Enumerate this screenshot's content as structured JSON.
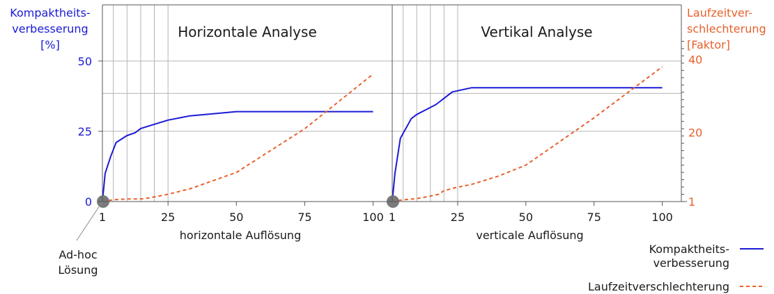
{
  "chart_data": {
    "type": "line",
    "left_axis": {
      "label_lines": [
        "Kompaktheits-",
        "verbesserung",
        "[%]"
      ],
      "ticks": [
        0,
        25,
        50
      ],
      "range": [
        0,
        70
      ],
      "color": "#1a1ad6"
    },
    "right_axis": {
      "label_lines": [
        "Laufzeitver-",
        "schlechterung",
        "[Faktor]"
      ],
      "ticks": [
        1,
        20,
        40
      ],
      "range": [
        1,
        55
      ],
      "color": "#e8602c"
    },
    "panels": [
      {
        "title": "Horizontale Analyse",
        "xlabel": "horizontale Auflösung",
        "xticks": [
          1,
          25,
          50,
          75,
          100
        ],
        "xrange": [
          1,
          107
        ],
        "gridlines_x": [
          1,
          5,
          10,
          15,
          20,
          25
        ],
        "series": [
          {
            "name": "Kompaktheitsverbesserung",
            "style": "solid",
            "axis": "left",
            "points": [
              [
                1,
                0
              ],
              [
                2,
                10
              ],
              [
                4,
                16
              ],
              [
                6,
                21
              ],
              [
                10,
                23.5
              ],
              [
                13,
                24.5
              ],
              [
                15,
                26
              ],
              [
                20,
                27.5
              ],
              [
                25,
                29
              ],
              [
                33,
                30.5
              ],
              [
                50,
                32
              ],
              [
                100,
                32
              ]
            ]
          },
          {
            "name": "Laufzeitverschlechterung",
            "style": "dashed",
            "axis": "right",
            "points": [
              [
                1,
                1
              ],
              [
                5,
                1.5
              ],
              [
                10,
                1.7
              ],
              [
                15,
                1.7
              ],
              [
                18,
                2
              ],
              [
                25,
                3
              ],
              [
                33,
                4.5
              ],
              [
                50,
                9
              ],
              [
                75,
                21
              ],
              [
                100,
                36
              ]
            ]
          }
        ]
      },
      {
        "title": "Vertikal Analyse",
        "xlabel": "verticale Auflösung",
        "xticks": [
          1,
          25,
          50,
          75,
          100
        ],
        "xrange": [
          1,
          107
        ],
        "gridlines_x": [
          1,
          5,
          10,
          15,
          20,
          25
        ],
        "series": [
          {
            "name": "Kompaktheitsverbesserung",
            "style": "solid",
            "axis": "left",
            "points": [
              [
                1,
                0
              ],
              [
                2,
                10
              ],
              [
                4,
                22.5
              ],
              [
                8,
                29.5
              ],
              [
                10,
                31
              ],
              [
                13,
                32.5
              ],
              [
                17,
                34.5
              ],
              [
                19,
                36
              ],
              [
                23,
                39
              ],
              [
                30,
                40.5
              ],
              [
                100,
                40.5
              ]
            ]
          },
          {
            "name": "Laufzeitverschlechterung",
            "style": "dashed",
            "axis": "right",
            "points": [
              [
                1,
                1
              ],
              [
                5,
                1.5
              ],
              [
                10,
                1.8
              ],
              [
                15,
                2.5
              ],
              [
                18,
                3
              ],
              [
                20,
                4
              ],
              [
                24,
                4.8
              ],
              [
                30,
                5.7
              ],
              [
                40,
                8
              ],
              [
                50,
                11
              ],
              [
                75,
                24
              ],
              [
                100,
                38
              ]
            ]
          }
        ]
      }
    ],
    "hlines_left": [
      25,
      38.5,
      50
    ],
    "annotation": [
      "Ad-hoc",
      "Lösung"
    ],
    "legend": {
      "placement": "bottom-right",
      "items": [
        {
          "label_lines": [
            "Kompaktheits-",
            "verbesserung"
          ],
          "style": "solid",
          "color": "#1a1ad6"
        },
        {
          "label_lines": [
            "Laufzeitverschlechterung"
          ],
          "style": "dashed",
          "color": "#e8602c"
        }
      ]
    }
  }
}
